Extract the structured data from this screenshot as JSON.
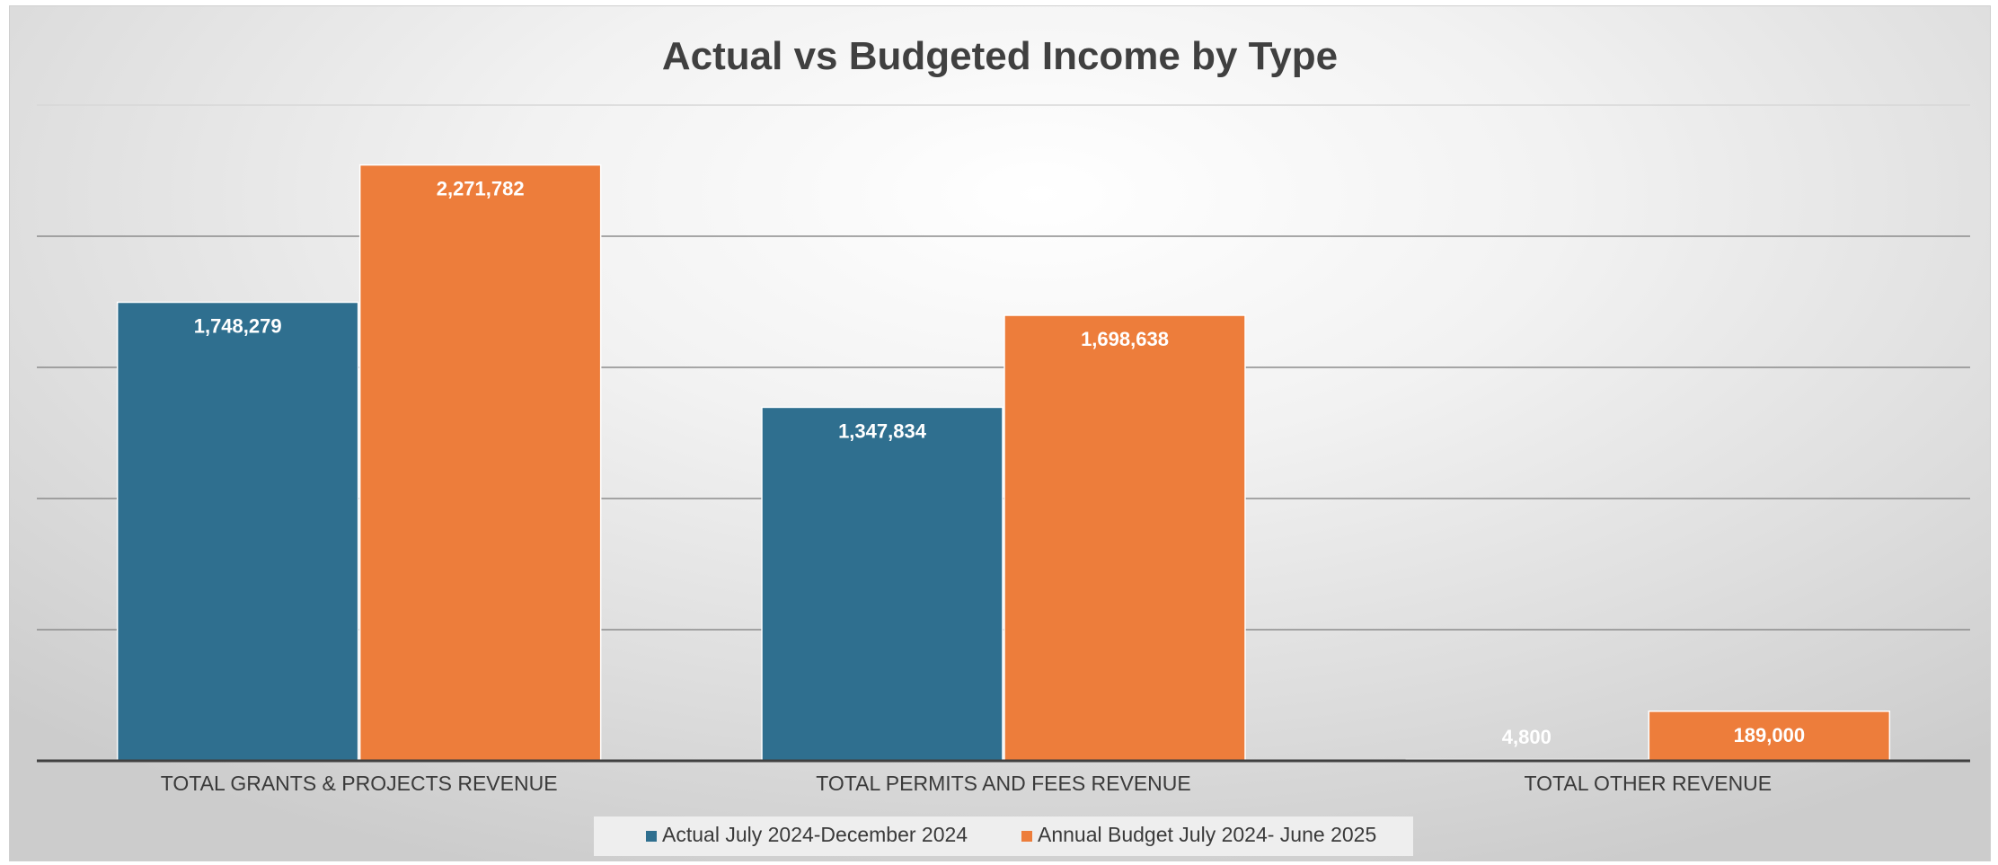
{
  "chart_data": {
    "type": "bar",
    "title": "Actual vs Budgeted Income by Type",
    "categories": [
      "TOTAL GRANTS & PROJECTS REVENUE",
      "TOTAL PERMITS AND FEES REVENUE",
      "TOTAL OTHER REVENUE"
    ],
    "series": [
      {
        "name": "Actual July 2024-December 2024",
        "color": "#2f6f8f",
        "values": [
          1748279,
          1347834,
          4800
        ],
        "labels": [
          "1,748,279",
          "1,347,834",
          "4,800"
        ]
      },
      {
        "name": "Annual Budget July 2024- June 2025",
        "color": "#ed7d3b",
        "values": [
          2271782,
          1698638,
          189000
        ],
        "labels": [
          "2,271,782",
          "1,698,638",
          "189,000"
        ]
      }
    ],
    "ylim": [
      0,
      2500000
    ],
    "gridlines": true,
    "legend_position": "bottom"
  }
}
